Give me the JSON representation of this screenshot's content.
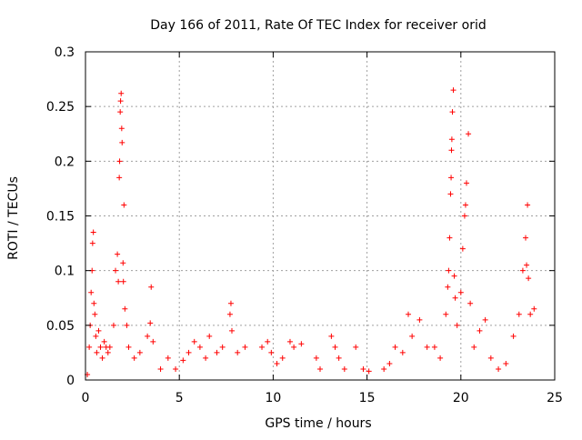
{
  "chart_data": {
    "type": "scatter",
    "title": "Day 166 of 2011, Rate Of TEC Index for receiver orid",
    "xlabel": "GPS time / hours",
    "ylabel": "ROTI / TECUs",
    "xlim": [
      0,
      25
    ],
    "ylim": [
      0,
      0.3
    ],
    "xticks": [
      0,
      5,
      10,
      15,
      20,
      25
    ],
    "xtick_labels": [
      "0",
      "5",
      "10",
      "15",
      "20",
      "25"
    ],
    "yticks": [
      0,
      0.05,
      0.1,
      0.15,
      0.2,
      0.25,
      0.3
    ],
    "ytick_labels": [
      "0",
      "0.05",
      "0.1",
      "0.15",
      "0.2",
      "0.25",
      "0.3"
    ],
    "grid": true,
    "legend": "none",
    "marker": "+",
    "color": "#ff0000",
    "series": [
      {
        "points": [
          [
            0.1,
            0.005
          ],
          [
            0.2,
            0.03
          ],
          [
            0.25,
            0.05
          ],
          [
            0.3,
            0.08
          ],
          [
            0.35,
            0.1
          ],
          [
            0.38,
            0.125
          ],
          [
            0.42,
            0.135
          ],
          [
            0.45,
            0.07
          ],
          [
            0.5,
            0.06
          ],
          [
            0.55,
            0.04
          ],
          [
            0.6,
            0.025
          ],
          [
            0.7,
            0.045
          ],
          [
            0.8,
            0.03
          ],
          [
            0.9,
            0.02
          ],
          [
            1.0,
            0.035
          ],
          [
            1.1,
            0.03
          ],
          [
            1.2,
            0.025
          ],
          [
            1.3,
            0.03
          ],
          [
            1.5,
            0.05
          ],
          [
            1.6,
            0.1
          ],
          [
            1.7,
            0.115
          ],
          [
            1.75,
            0.09
          ],
          [
            1.8,
            0.185
          ],
          [
            1.82,
            0.2
          ],
          [
            1.85,
            0.245
          ],
          [
            1.87,
            0.255
          ],
          [
            1.9,
            0.262
          ],
          [
            1.93,
            0.23
          ],
          [
            1.95,
            0.217
          ],
          [
            2.0,
            0.107
          ],
          [
            2.02,
            0.09
          ],
          [
            2.05,
            0.16
          ],
          [
            2.1,
            0.065
          ],
          [
            2.2,
            0.05
          ],
          [
            2.3,
            0.03
          ],
          [
            2.6,
            0.02
          ],
          [
            2.9,
            0.025
          ],
          [
            3.3,
            0.04
          ],
          [
            3.45,
            0.052
          ],
          [
            3.5,
            0.085
          ],
          [
            3.6,
            0.035
          ],
          [
            4.0,
            0.01
          ],
          [
            4.4,
            0.02
          ],
          [
            4.8,
            0.01
          ],
          [
            5.2,
            0.018
          ],
          [
            5.5,
            0.025
          ],
          [
            5.8,
            0.035
          ],
          [
            6.1,
            0.03
          ],
          [
            6.4,
            0.02
          ],
          [
            6.6,
            0.04
          ],
          [
            7.0,
            0.025
          ],
          [
            7.3,
            0.03
          ],
          [
            7.7,
            0.06
          ],
          [
            7.75,
            0.07
          ],
          [
            7.8,
            0.045
          ],
          [
            8.1,
            0.025
          ],
          [
            8.5,
            0.03
          ],
          [
            9.4,
            0.03
          ],
          [
            9.7,
            0.035
          ],
          [
            9.9,
            0.025
          ],
          [
            10.2,
            0.015
          ],
          [
            10.5,
            0.02
          ],
          [
            10.9,
            0.035
          ],
          [
            11.1,
            0.03
          ],
          [
            11.5,
            0.033
          ],
          [
            12.3,
            0.02
          ],
          [
            12.5,
            0.01
          ],
          [
            13.1,
            0.04
          ],
          [
            13.3,
            0.03
          ],
          [
            13.5,
            0.02
          ],
          [
            13.8,
            0.01
          ],
          [
            14.4,
            0.03
          ],
          [
            14.8,
            0.01
          ],
          [
            15.1,
            0.008
          ],
          [
            15.9,
            0.01
          ],
          [
            16.2,
            0.015
          ],
          [
            16.5,
            0.03
          ],
          [
            16.9,
            0.025
          ],
          [
            17.2,
            0.06
          ],
          [
            17.4,
            0.04
          ],
          [
            17.8,
            0.055
          ],
          [
            18.2,
            0.03
          ],
          [
            18.6,
            0.03
          ],
          [
            18.9,
            0.02
          ],
          [
            19.2,
            0.06
          ],
          [
            19.3,
            0.085
          ],
          [
            19.35,
            0.1
          ],
          [
            19.4,
            0.13
          ],
          [
            19.45,
            0.17
          ],
          [
            19.48,
            0.185
          ],
          [
            19.5,
            0.21
          ],
          [
            19.52,
            0.22
          ],
          [
            19.55,
            0.245
          ],
          [
            19.6,
            0.265
          ],
          [
            19.65,
            0.095
          ],
          [
            19.7,
            0.075
          ],
          [
            19.8,
            0.05
          ],
          [
            20.0,
            0.08
          ],
          [
            20.1,
            0.12
          ],
          [
            20.2,
            0.15
          ],
          [
            20.25,
            0.16
          ],
          [
            20.3,
            0.18
          ],
          [
            20.4,
            0.225
          ],
          [
            20.5,
            0.07
          ],
          [
            20.7,
            0.03
          ],
          [
            21.0,
            0.045
          ],
          [
            21.3,
            0.055
          ],
          [
            21.6,
            0.02
          ],
          [
            22.0,
            0.01
          ],
          [
            22.4,
            0.015
          ],
          [
            22.8,
            0.04
          ],
          [
            23.1,
            0.06
          ],
          [
            23.3,
            0.1
          ],
          [
            23.45,
            0.13
          ],
          [
            23.5,
            0.105
          ],
          [
            23.55,
            0.16
          ],
          [
            23.6,
            0.093
          ],
          [
            23.7,
            0.06
          ],
          [
            23.9,
            0.065
          ]
        ]
      }
    ]
  }
}
